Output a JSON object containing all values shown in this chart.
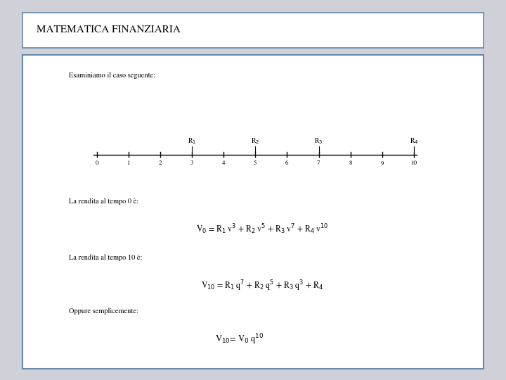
{
  "title": "MATEMATICA FINANZIARIA",
  "bg_outer": "#d0d0d8",
  "bg_title_box": "#ffffff",
  "bg_content_box": "#ffffff",
  "title_font_size": 11,
  "text_intro": "Esaminiamo il caso seguente:",
  "timeline_ticks": [
    0,
    1,
    2,
    3,
    4,
    5,
    6,
    7,
    8,
    9,
    10
  ],
  "R_labels": [
    {
      "text": "R$_1$",
      "x": 3
    },
    {
      "text": "R$_2$",
      "x": 5
    },
    {
      "text": "R$_3$",
      "x": 7
    },
    {
      "text": "R$_4$",
      "x": 10
    }
  ],
  "label1": "La rendita al tempo 0 è:",
  "formula1": "V$_0$ = R$_1$ v$^3$ + R$_2$ v$^5$ + R$_3$ v$^7$ + R$_4$ v$^{10}$",
  "label2": "La rendita al tempo 10 è:",
  "formula2": "V$_{10}$ = R$_1$ q$^7$ + R$_2$ q$^5$ + R$_3$ q$^3$ + R$_4$",
  "label3": "Oppure semplicemente:",
  "formula3": "V$_{10}$= V$_0$ q$^{10}$",
  "text_color": "#000000",
  "title_border_color": "#6688aa",
  "content_border_color": "#6688aa",
  "font_size_text": 7.5,
  "font_size_formula": 8.5,
  "font_size_timeline": 6.5
}
